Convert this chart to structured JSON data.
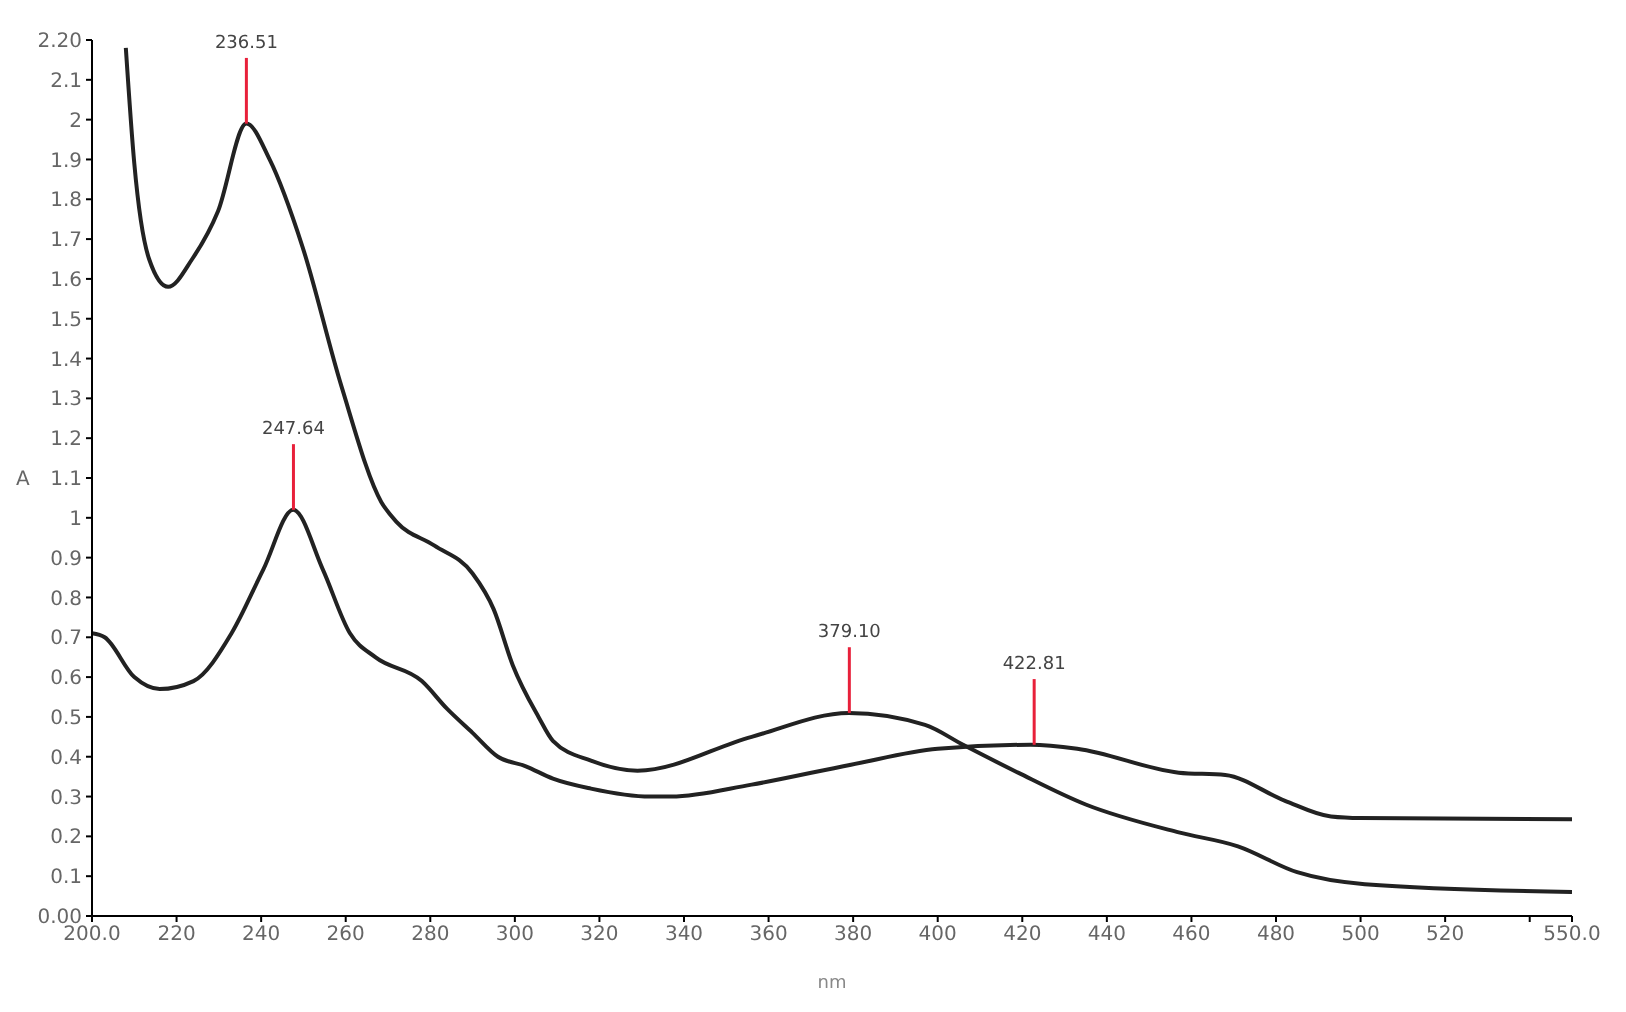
{
  "chart_data": {
    "type": "line",
    "xlabel": "nm",
    "ylabel": "A",
    "xlim": [
      200,
      550
    ],
    "xticks": [
      {
        "value": 200,
        "label": "200.0"
      },
      220,
      240,
      260,
      280,
      300,
      320,
      340,
      360,
      380,
      400,
      420,
      440,
      460,
      480,
      500,
      520,
      {
        "value": 540,
        "label": null
      },
      {
        "value": 550,
        "label": "550.0"
      }
    ],
    "ylim": [
      0,
      2.2
    ],
    "yticks": [
      {
        "value": 0,
        "label": "0.00"
      },
      0.1,
      0.2,
      0.3,
      0.4,
      0.5,
      0.6,
      0.7,
      0.8,
      0.9,
      1.0,
      1.1,
      1.2,
      1.3,
      1.4,
      1.5,
      1.6,
      1.7,
      1.8,
      1.9,
      2.0,
      2.1,
      {
        "value": 2.2,
        "label": "2.20"
      }
    ],
    "grid": false,
    "marker": "none",
    "line_style": "solid",
    "series": [
      {
        "color": "#222222",
        "x": [
          208,
          210,
          213.5,
          218,
          223.7,
          229.8,
          236.5,
          242,
          249.8,
          259,
          268.4,
          272,
          281,
          290,
          295,
          299.5,
          305.6,
          309,
          318,
          329,
          356,
          379,
          397,
          406,
          419,
          435,
          457,
          471,
          485,
          501,
          550
        ],
        "values": [
          2.18,
          1.89,
          1.65,
          1.58,
          1.65,
          1.77,
          1.99,
          1.9,
          1.68,
          1.33,
          1.04,
          0.99,
          0.93,
          0.86,
          0.77,
          0.63,
          0.5,
          0.44,
          0.39,
          0.365,
          0.45,
          0.51,
          0.48,
          0.43,
          0.36,
          0.28,
          0.21,
          0.175,
          0.11,
          0.08,
          0.06
        ]
      },
      {
        "color": "#222222",
        "x": [
          200,
          203,
          210,
          216,
          224,
          233,
          240.5,
          247.6,
          254.6,
          261,
          267,
          278,
          284,
          290,
          296,
          302.6,
          309,
          318,
          332,
          337,
          356,
          379.5,
          400,
          422,
          433,
          457,
          468,
          482,
          493,
          500,
          550
        ],
        "values": [
          0.71,
          0.7,
          0.6,
          0.57,
          0.59,
          0.71,
          0.87,
          1.02,
          0.87,
          0.71,
          0.65,
          0.59,
          0.52,
          0.46,
          0.4,
          0.376,
          0.345,
          0.32,
          0.3,
          0.3,
          0.33,
          0.38,
          0.42,
          0.43,
          0.42,
          0.36,
          0.354,
          0.29,
          0.25,
          0.246,
          0.243
        ]
      }
    ],
    "annotations": [
      {
        "text": "236.51",
        "x": 236.51,
        "y": 1.99
      },
      {
        "text": "247.64",
        "x": 247.64,
        "y": 1.02
      },
      {
        "text": "379.10",
        "x": 379.1,
        "y": 0.51
      },
      {
        "text": "422.81",
        "x": 422.81,
        "y": 0.43
      }
    ]
  }
}
